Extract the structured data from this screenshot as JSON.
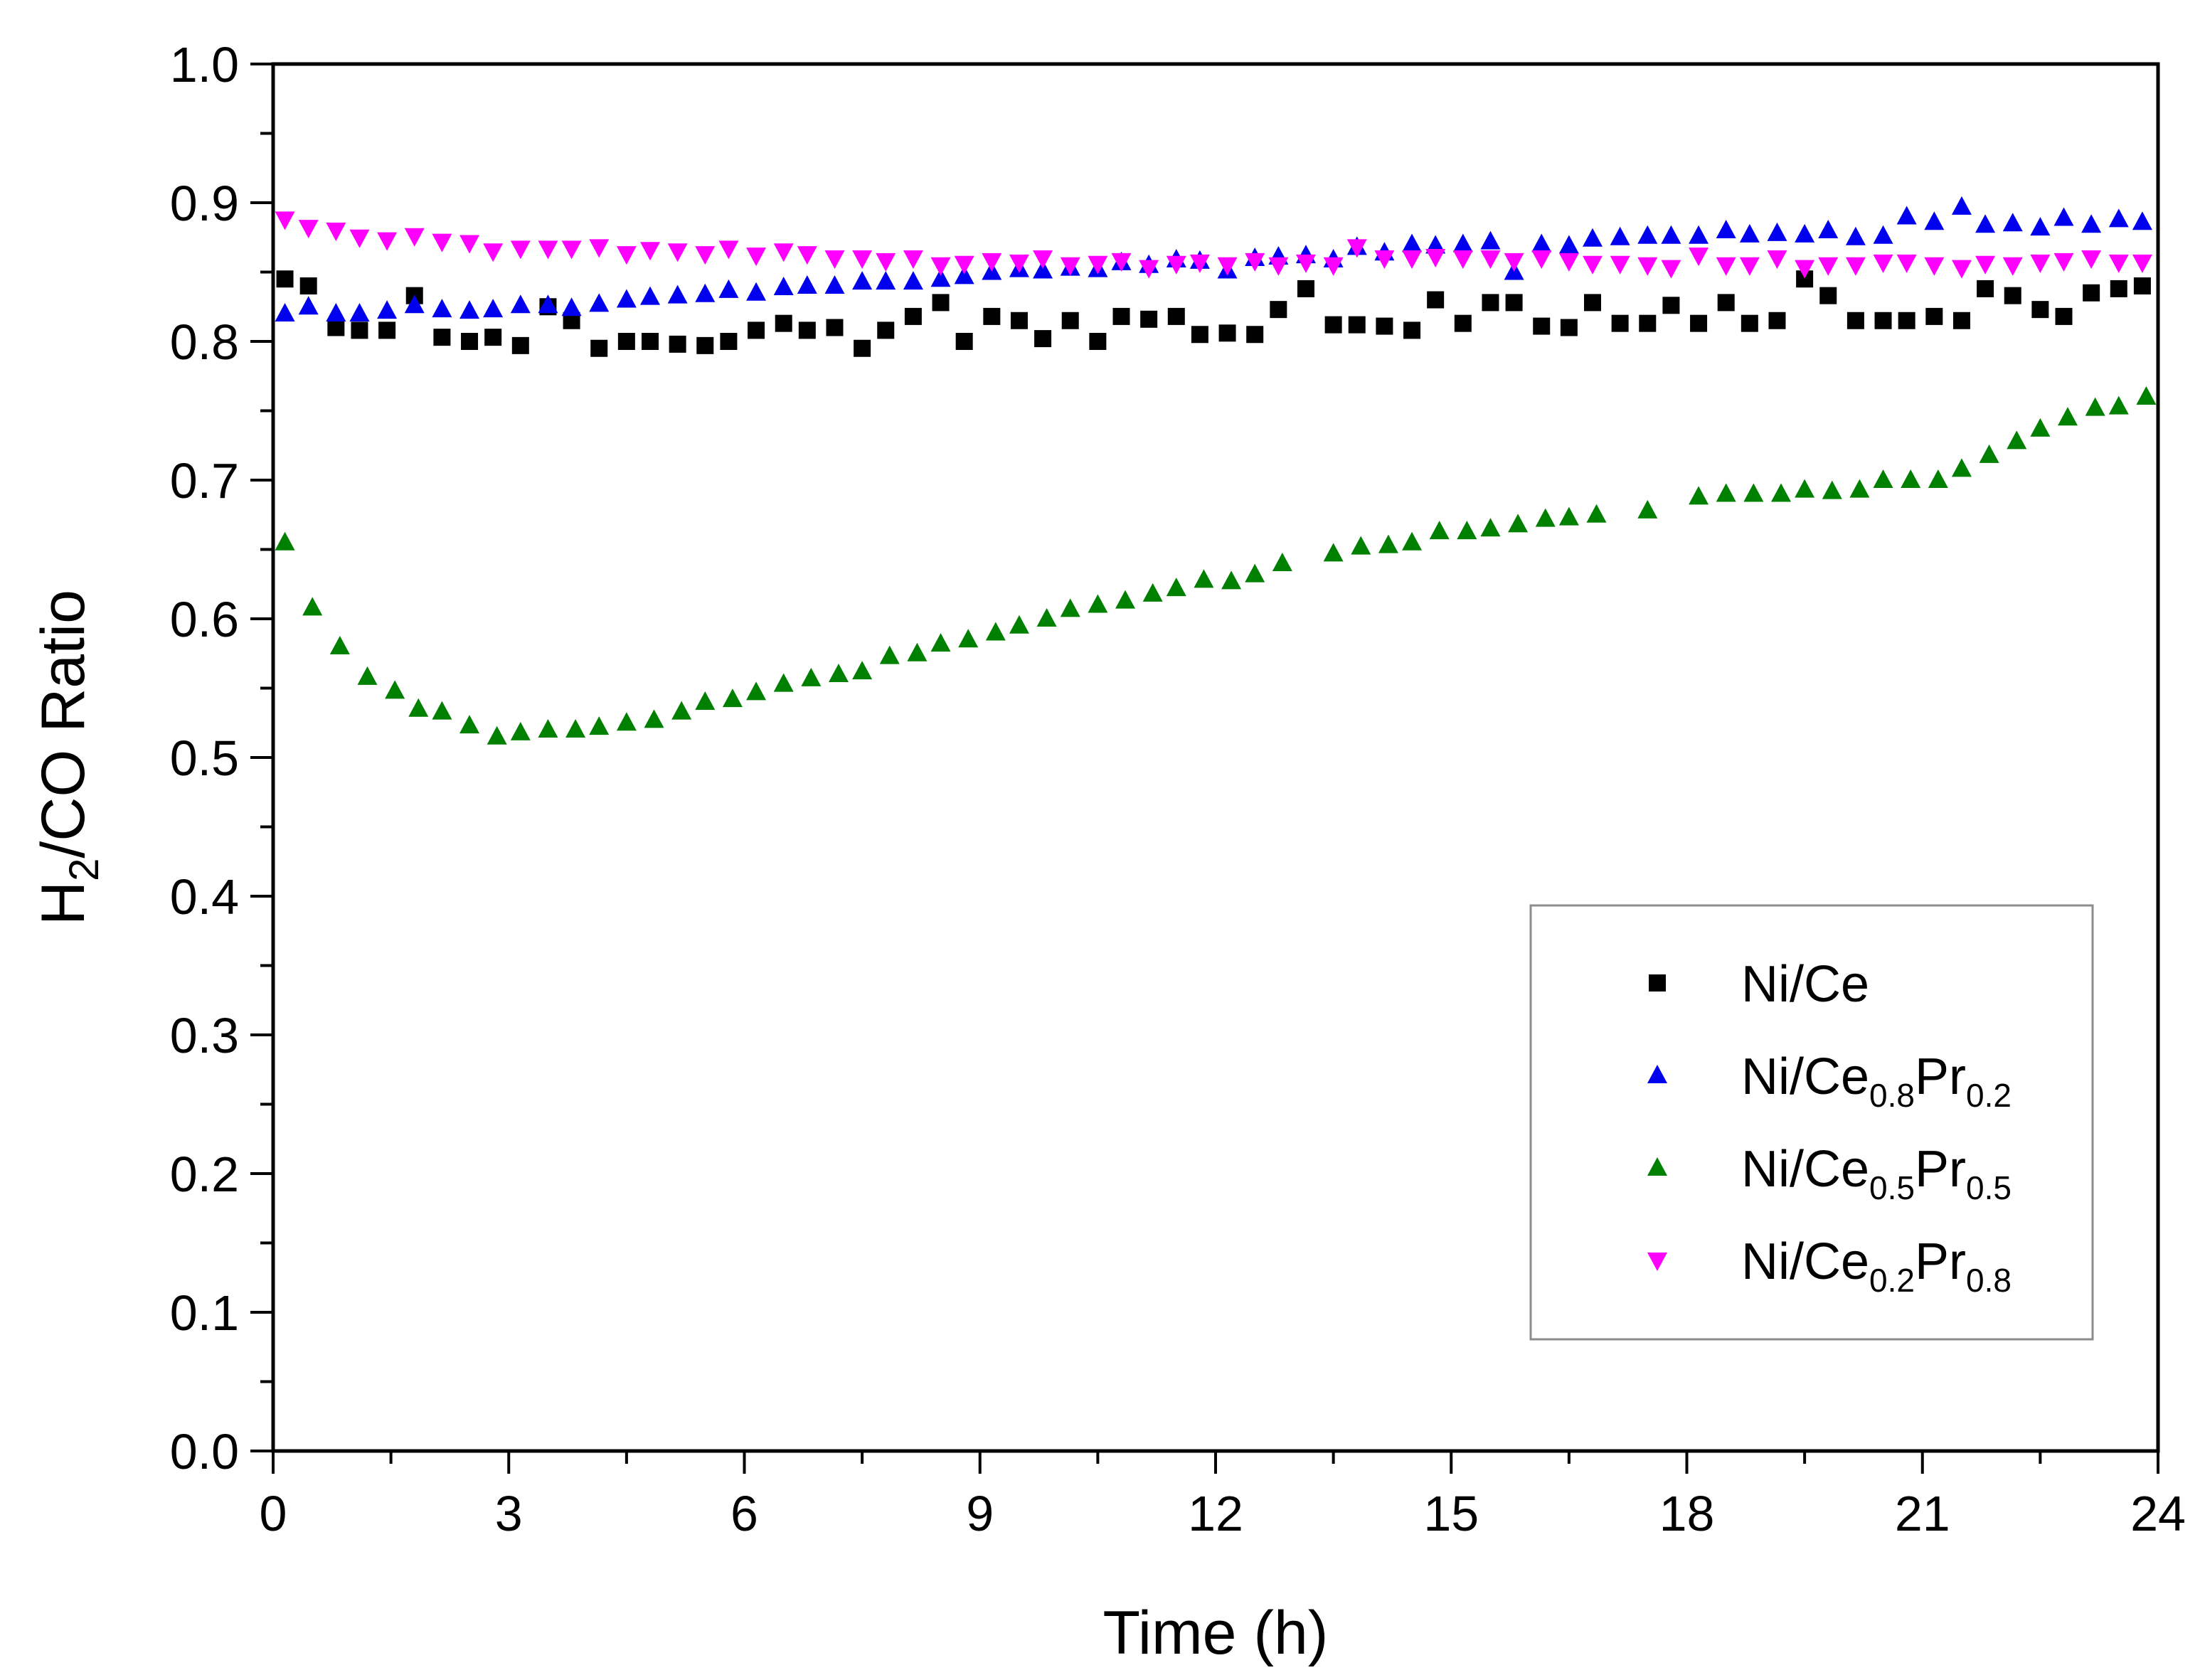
{
  "chart_data": {
    "type": "scatter",
    "title": "",
    "xlabel": "Time (h)",
    "ylabel": {
      "base": "H",
      "sub": "2",
      "rest": "/CO Ratio"
    },
    "xlim": [
      0,
      24
    ],
    "ylim": [
      0.0,
      1.0
    ],
    "xticks": [
      0,
      3,
      6,
      9,
      12,
      15,
      18,
      21,
      24
    ],
    "xtick_labels": [
      "0",
      "3",
      "6",
      "9",
      "12",
      "15",
      "18",
      "21",
      "24"
    ],
    "yticks": [
      0.0,
      0.1,
      0.2,
      0.3,
      0.4,
      0.5,
      0.6,
      0.7,
      0.8,
      0.9,
      1.0
    ],
    "ytick_labels": [
      "0.0",
      "0.1",
      "0.2",
      "0.3",
      "0.4",
      "0.5",
      "0.6",
      "0.7",
      "0.8",
      "0.9",
      "1.0"
    ],
    "grid": false,
    "legend_position": "lower-right",
    "series": [
      {
        "name": "Ni/Ce",
        "label_parts": [
          {
            "t": "Ni/Ce"
          }
        ],
        "marker": "square",
        "color": "#000000",
        "x": [
          0.15,
          0.45,
          0.8,
          1.1,
          1.45,
          1.8,
          2.15,
          2.5,
          2.8,
          3.15,
          3.5,
          3.8,
          4.15,
          4.5,
          4.8,
          5.15,
          5.5,
          5.8,
          6.15,
          6.5,
          6.8,
          7.15,
          7.5,
          7.8,
          8.15,
          8.5,
          8.8,
          9.15,
          9.5,
          9.8,
          10.15,
          10.5,
          10.8,
          11.15,
          11.5,
          11.8,
          12.15,
          12.5,
          12.8,
          13.15,
          13.5,
          13.8,
          14.15,
          14.5,
          14.8,
          15.15,
          15.5,
          15.8,
          16.15,
          16.5,
          16.8,
          17.15,
          17.5,
          17.8,
          18.15,
          18.5,
          18.8,
          19.15,
          19.5,
          19.8,
          20.15,
          20.5,
          20.8,
          21.15,
          21.5,
          21.8,
          22.15,
          22.5,
          22.8,
          23.15,
          23.5,
          23.8
        ],
        "y": [
          0.845,
          0.84,
          0.81,
          0.808,
          0.808,
          0.833,
          0.803,
          0.8,
          0.803,
          0.797,
          0.825,
          0.815,
          0.795,
          0.8,
          0.8,
          0.798,
          0.797,
          0.8,
          0.808,
          0.813,
          0.808,
          0.81,
          0.795,
          0.808,
          0.818,
          0.828,
          0.8,
          0.818,
          0.815,
          0.802,
          0.815,
          0.8,
          0.818,
          0.816,
          0.818,
          0.805,
          0.806,
          0.805,
          0.823,
          0.838,
          0.812,
          0.812,
          0.811,
          0.808,
          0.83,
          0.813,
          0.828,
          0.828,
          0.811,
          0.81,
          0.828,
          0.813,
          0.813,
          0.826,
          0.813,
          0.828,
          0.813,
          0.815,
          0.845,
          0.833,
          0.815,
          0.815,
          0.815,
          0.818,
          0.815,
          0.838,
          0.833,
          0.823,
          0.818,
          0.835,
          0.838,
          0.84
        ]
      },
      {
        "name": "Ni/Ce0.8Pr0.2",
        "label_parts": [
          {
            "t": "Ni/Ce"
          },
          {
            "t": "0.8",
            "sub": true
          },
          {
            "t": "Pr"
          },
          {
            "t": "0.2",
            "sub": true
          }
        ],
        "marker": "triangle-up",
        "color": "#0000ee",
        "x": [
          0.15,
          0.45,
          0.8,
          1.1,
          1.45,
          1.8,
          2.15,
          2.5,
          2.8,
          3.15,
          3.5,
          3.8,
          4.15,
          4.5,
          4.8,
          5.15,
          5.5,
          5.8,
          6.15,
          6.5,
          6.8,
          7.15,
          7.5,
          7.8,
          8.15,
          8.5,
          8.8,
          9.15,
          9.5,
          9.8,
          10.15,
          10.5,
          10.8,
          11.15,
          11.5,
          11.8,
          12.15,
          12.5,
          12.8,
          13.15,
          13.5,
          13.8,
          14.15,
          14.5,
          14.8,
          15.15,
          15.5,
          15.8,
          16.15,
          16.5,
          16.8,
          17.15,
          17.5,
          17.8,
          18.15,
          18.5,
          18.8,
          19.15,
          19.5,
          19.8,
          20.15,
          20.5,
          20.8,
          21.15,
          21.5,
          21.8,
          22.15,
          22.5,
          22.8,
          23.15,
          23.5,
          23.8
        ],
        "y": [
          0.82,
          0.825,
          0.82,
          0.82,
          0.822,
          0.826,
          0.823,
          0.822,
          0.823,
          0.826,
          0.826,
          0.824,
          0.827,
          0.83,
          0.832,
          0.833,
          0.834,
          0.837,
          0.835,
          0.839,
          0.84,
          0.84,
          0.843,
          0.843,
          0.843,
          0.845,
          0.847,
          0.85,
          0.852,
          0.851,
          0.853,
          0.852,
          0.857,
          0.855,
          0.859,
          0.858,
          0.851,
          0.86,
          0.861,
          0.862,
          0.859,
          0.868,
          0.864,
          0.87,
          0.869,
          0.87,
          0.872,
          0.85,
          0.87,
          0.869,
          0.874,
          0.875,
          0.876,
          0.876,
          0.876,
          0.88,
          0.877,
          0.878,
          0.877,
          0.88,
          0.875,
          0.876,
          0.89,
          0.886,
          0.897,
          0.884,
          0.885,
          0.882,
          0.889,
          0.884,
          0.888,
          0.886
        ]
      },
      {
        "name": "Ni/Ce0.5Pr0.5",
        "label_parts": [
          {
            "t": "Ni/Ce"
          },
          {
            "t": "0.5",
            "sub": true
          },
          {
            "t": "Pr"
          },
          {
            "t": "0.5",
            "sub": true
          }
        ],
        "marker": "triangle-up",
        "color": "#008000",
        "x": [
          0.15,
          0.5,
          0.85,
          1.2,
          1.55,
          1.85,
          2.15,
          2.5,
          2.85,
          3.15,
          3.5,
          3.85,
          4.15,
          4.5,
          4.85,
          5.2,
          5.5,
          5.85,
          6.15,
          6.5,
          6.85,
          7.2,
          7.5,
          7.85,
          8.2,
          8.5,
          8.85,
          9.2,
          9.5,
          9.85,
          10.15,
          10.5,
          10.85,
          11.2,
          11.5,
          11.85,
          12.2,
          12.5,
          12.85,
          13.5,
          13.85,
          14.2,
          14.5,
          14.85,
          15.2,
          15.5,
          15.85,
          16.2,
          16.5,
          16.85,
          17.5,
          18.15,
          18.5,
          18.85,
          19.2,
          19.5,
          19.85,
          20.2,
          20.5,
          20.85,
          21.2,
          21.5,
          21.85,
          22.2,
          22.5,
          22.85,
          23.2,
          23.5,
          23.85
        ],
        "y": [
          0.655,
          0.608,
          0.58,
          0.558,
          0.548,
          0.535,
          0.533,
          0.523,
          0.515,
          0.518,
          0.52,
          0.52,
          0.522,
          0.525,
          0.527,
          0.533,
          0.54,
          0.542,
          0.547,
          0.553,
          0.557,
          0.56,
          0.562,
          0.573,
          0.575,
          0.582,
          0.585,
          0.59,
          0.595,
          0.6,
          0.607,
          0.61,
          0.613,
          0.618,
          0.622,
          0.628,
          0.627,
          0.632,
          0.64,
          0.647,
          0.652,
          0.653,
          0.655,
          0.663,
          0.663,
          0.665,
          0.668,
          0.672,
          0.673,
          0.675,
          0.678,
          0.688,
          0.69,
          0.69,
          0.69,
          0.693,
          0.692,
          0.693,
          0.7,
          0.7,
          0.7,
          0.708,
          0.718,
          0.728,
          0.737,
          0.745,
          0.752,
          0.753,
          0.76
        ]
      },
      {
        "name": "Ni/Ce0.2Pr0.8",
        "label_parts": [
          {
            "t": "Ni/Ce"
          },
          {
            "t": "0.2",
            "sub": true
          },
          {
            "t": "Pr"
          },
          {
            "t": "0.8",
            "sub": true
          }
        ],
        "marker": "triangle-down",
        "color": "#ff00ff",
        "x": [
          0.15,
          0.45,
          0.8,
          1.1,
          1.45,
          1.8,
          2.15,
          2.5,
          2.8,
          3.15,
          3.5,
          3.8,
          4.15,
          4.5,
          4.8,
          5.15,
          5.5,
          5.8,
          6.15,
          6.5,
          6.8,
          7.15,
          7.5,
          7.8,
          8.15,
          8.5,
          8.8,
          9.15,
          9.5,
          9.8,
          10.15,
          10.5,
          10.8,
          11.15,
          11.5,
          11.8,
          12.15,
          12.5,
          12.8,
          13.15,
          13.5,
          13.8,
          14.15,
          14.5,
          14.8,
          15.15,
          15.5,
          15.8,
          16.15,
          16.5,
          16.8,
          17.15,
          17.5,
          17.8,
          18.15,
          18.5,
          18.8,
          19.15,
          19.5,
          19.8,
          20.15,
          20.5,
          20.8,
          21.15,
          21.5,
          21.8,
          22.15,
          22.5,
          22.8,
          23.15,
          23.5,
          23.8
        ],
        "y": [
          0.888,
          0.882,
          0.88,
          0.875,
          0.873,
          0.876,
          0.872,
          0.871,
          0.865,
          0.867,
          0.867,
          0.867,
          0.868,
          0.863,
          0.866,
          0.865,
          0.863,
          0.867,
          0.862,
          0.865,
          0.863,
          0.86,
          0.86,
          0.858,
          0.86,
          0.855,
          0.856,
          0.858,
          0.857,
          0.86,
          0.855,
          0.856,
          0.858,
          0.853,
          0.856,
          0.857,
          0.855,
          0.858,
          0.855,
          0.857,
          0.855,
          0.868,
          0.86,
          0.86,
          0.861,
          0.86,
          0.86,
          0.858,
          0.86,
          0.858,
          0.856,
          0.856,
          0.855,
          0.853,
          0.862,
          0.855,
          0.855,
          0.86,
          0.853,
          0.855,
          0.855,
          0.857,
          0.857,
          0.855,
          0.853,
          0.856,
          0.855,
          0.857,
          0.858,
          0.86,
          0.857,
          0.857
        ]
      }
    ]
  }
}
